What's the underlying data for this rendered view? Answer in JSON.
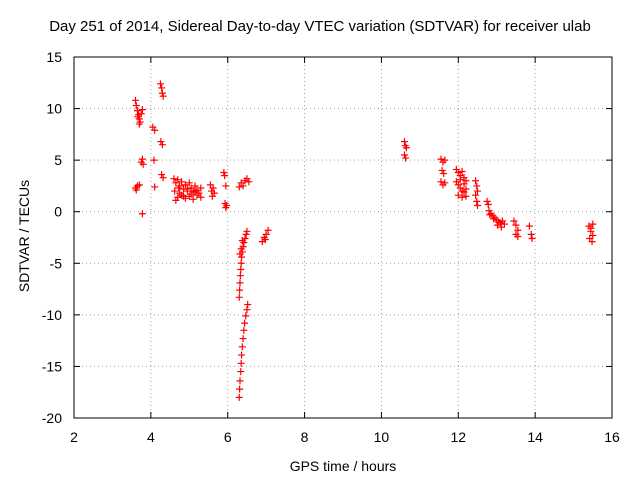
{
  "chart_data": {
    "type": "scatter",
    "title": "Day 251 of 2014, Sidereal Day-to-day VTEC variation (SDTVAR) for receiver ulab",
    "xlabel": "GPS time / hours",
    "ylabel": "SDTVAR / TECUs",
    "xlim": [
      2,
      16
    ],
    "ylim": [
      -20,
      15
    ],
    "xticks": [
      2,
      4,
      6,
      8,
      10,
      12,
      14,
      16
    ],
    "yticks": [
      -20,
      -15,
      -10,
      -5,
      0,
      5,
      10,
      15
    ],
    "grid": true,
    "marker": "+",
    "color": "#ff0000",
    "series": [
      {
        "name": "SDTVAR",
        "points": [
          [
            3.6,
            10.8
          ],
          [
            3.62,
            10.3
          ],
          [
            3.65,
            9.8
          ],
          [
            3.68,
            9.4
          ],
          [
            3.7,
            9.0
          ],
          [
            3.72,
            8.7
          ],
          [
            3.75,
            9.5
          ],
          [
            3.78,
            9.9
          ],
          [
            3.66,
            9.2
          ],
          [
            3.7,
            8.5
          ],
          [
            3.6,
            2.3
          ],
          [
            3.65,
            2.5
          ],
          [
            3.7,
            2.6
          ],
          [
            3.62,
            2.1
          ],
          [
            3.75,
            4.8
          ],
          [
            3.78,
            5.1
          ],
          [
            3.8,
            4.6
          ],
          [
            3.78,
            -0.2
          ],
          [
            4.05,
            8.2
          ],
          [
            4.1,
            7.9
          ],
          [
            4.08,
            5.0
          ],
          [
            4.1,
            2.4
          ],
          [
            4.25,
            12.4
          ],
          [
            4.28,
            12.0
          ],
          [
            4.3,
            11.5
          ],
          [
            4.32,
            11.2
          ],
          [
            4.26,
            6.8
          ],
          [
            4.3,
            6.5
          ],
          [
            4.28,
            3.6
          ],
          [
            4.32,
            3.3
          ],
          [
            4.6,
            3.2
          ],
          [
            4.65,
            2.8
          ],
          [
            4.7,
            3.1
          ],
          [
            4.75,
            2.5
          ],
          [
            4.8,
            2.9
          ],
          [
            4.85,
            2.2
          ],
          [
            4.9,
            2.6
          ],
          [
            4.95,
            2.0
          ],
          [
            5.0,
            2.8
          ],
          [
            5.05,
            2.3
          ],
          [
            5.1,
            1.9
          ],
          [
            5.15,
            2.5
          ],
          [
            5.2,
            2.1
          ],
          [
            5.25,
            1.8
          ],
          [
            5.3,
            2.3
          ],
          [
            4.7,
            1.4
          ],
          [
            4.8,
            1.6
          ],
          [
            4.9,
            1.3
          ],
          [
            5.0,
            1.5
          ],
          [
            5.1,
            1.2
          ],
          [
            5.2,
            1.6
          ],
          [
            5.3,
            1.4
          ],
          [
            4.65,
            1.1
          ],
          [
            4.75,
            1.8
          ],
          [
            4.85,
            1.5
          ],
          [
            4.95,
            2.2
          ],
          [
            5.05,
            1.7
          ],
          [
            5.15,
            2.0
          ],
          [
            4.62,
            2.0
          ],
          [
            4.72,
            2.3
          ],
          [
            5.55,
            2.6
          ],
          [
            5.58,
            2.0
          ],
          [
            5.6,
            1.5
          ],
          [
            5.62,
            2.3
          ],
          [
            5.65,
            1.8
          ],
          [
            5.9,
            3.8
          ],
          [
            5.92,
            3.5
          ],
          [
            5.95,
            2.5
          ],
          [
            5.93,
            0.8
          ],
          [
            5.95,
            0.4
          ],
          [
            5.97,
            0.6
          ],
          [
            6.3,
            2.4
          ],
          [
            6.35,
            2.8
          ],
          [
            6.4,
            2.5
          ],
          [
            6.45,
            3.0
          ],
          [
            6.5,
            3.2
          ],
          [
            6.55,
            2.9
          ],
          [
            6.3,
            -8.3
          ],
          [
            6.31,
            -7.6
          ],
          [
            6.32,
            -6.9
          ],
          [
            6.33,
            -6.2
          ],
          [
            6.34,
            -5.6
          ],
          [
            6.35,
            -5.0
          ],
          [
            6.36,
            -4.4
          ],
          [
            6.38,
            -3.9
          ],
          [
            6.4,
            -3.4
          ],
          [
            6.42,
            -3.0
          ],
          [
            6.45,
            -2.6
          ],
          [
            6.48,
            -2.2
          ],
          [
            6.5,
            -1.9
          ],
          [
            6.32,
            -4.1
          ],
          [
            6.35,
            -3.6
          ],
          [
            6.38,
            -2.8
          ],
          [
            6.3,
            -18.0
          ],
          [
            6.31,
            -17.2
          ],
          [
            6.32,
            -16.4
          ],
          [
            6.34,
            -15.5
          ],
          [
            6.35,
            -14.7
          ],
          [
            6.36,
            -13.9
          ],
          [
            6.38,
            -13.1
          ],
          [
            6.4,
            -12.3
          ],
          [
            6.42,
            -11.5
          ],
          [
            6.44,
            -10.8
          ],
          [
            6.47,
            -10.1
          ],
          [
            6.5,
            -9.5
          ],
          [
            6.52,
            -9.0
          ],
          [
            6.9,
            -2.9
          ],
          [
            6.95,
            -2.5
          ],
          [
            7.0,
            -2.2
          ],
          [
            7.05,
            -1.8
          ],
          [
            6.98,
            -2.7
          ],
          [
            10.6,
            6.8
          ],
          [
            10.62,
            6.4
          ],
          [
            10.65,
            6.2
          ],
          [
            10.6,
            5.5
          ],
          [
            10.63,
            5.2
          ],
          [
            11.55,
            5.1
          ],
          [
            11.6,
            4.8
          ],
          [
            11.65,
            5.0
          ],
          [
            11.58,
            4.0
          ],
          [
            11.62,
            3.7
          ],
          [
            11.55,
            2.9
          ],
          [
            11.6,
            2.6
          ],
          [
            11.65,
            2.8
          ],
          [
            11.95,
            4.1
          ],
          [
            12.0,
            3.8
          ],
          [
            12.05,
            3.5
          ],
          [
            12.1,
            3.9
          ],
          [
            12.15,
            3.3
          ],
          [
            12.2,
            3.0
          ],
          [
            11.95,
            2.9
          ],
          [
            12.0,
            2.6
          ],
          [
            12.05,
            2.3
          ],
          [
            12.1,
            2.0
          ],
          [
            12.15,
            1.9
          ],
          [
            12.2,
            2.2
          ],
          [
            12.0,
            1.6
          ],
          [
            12.1,
            1.4
          ],
          [
            12.2,
            1.5
          ],
          [
            12.05,
            3.1
          ],
          [
            12.15,
            2.7
          ],
          [
            12.45,
            3.0
          ],
          [
            12.48,
            2.5
          ],
          [
            12.5,
            2.0
          ],
          [
            12.45,
            1.6
          ],
          [
            12.48,
            1.0
          ],
          [
            12.5,
            0.6
          ],
          [
            12.75,
            1.0
          ],
          [
            12.78,
            0.7
          ],
          [
            12.8,
            0.1
          ],
          [
            12.85,
            -0.2
          ],
          [
            12.9,
            -0.4
          ],
          [
            12.95,
            -0.6
          ],
          [
            13.0,
            -0.8
          ],
          [
            13.05,
            -1.0
          ],
          [
            13.1,
            -1.1
          ],
          [
            13.15,
            -0.9
          ],
          [
            13.2,
            -1.2
          ],
          [
            12.82,
            -0.3
          ],
          [
            12.92,
            -0.7
          ],
          [
            13.02,
            -1.3
          ],
          [
            13.12,
            -1.5
          ],
          [
            13.45,
            -0.9
          ],
          [
            13.5,
            -1.3
          ],
          [
            13.55,
            -1.8
          ],
          [
            13.5,
            -2.2
          ],
          [
            13.55,
            -2.4
          ],
          [
            13.85,
            -1.4
          ],
          [
            13.9,
            -2.2
          ],
          [
            13.92,
            -2.6
          ],
          [
            15.4,
            -1.4
          ],
          [
            15.45,
            -1.9
          ],
          [
            15.5,
            -2.3
          ],
          [
            15.42,
            -2.6
          ],
          [
            15.48,
            -2.9
          ],
          [
            15.5,
            -1.2
          ],
          [
            15.45,
            -1.6
          ]
        ]
      }
    ]
  }
}
